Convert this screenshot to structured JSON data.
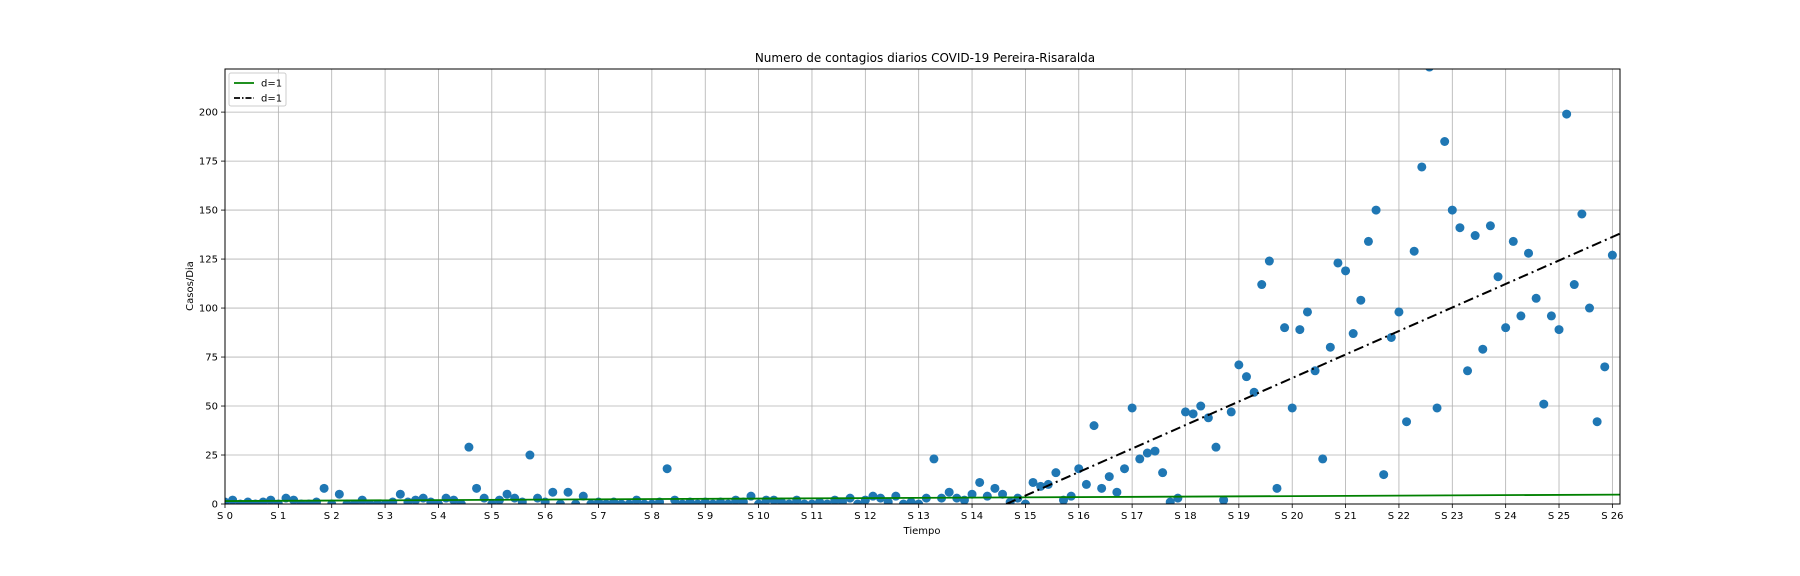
{
  "chart_data": {
    "type": "scatter",
    "title": "Numero de contagios diarios COVID-19 Pereira-Risaralda",
    "xlabel": "Tiempo",
    "ylabel": "Casos/Dia",
    "xlim": [
      0,
      183
    ],
    "ylim": [
      0,
      222
    ],
    "grid": true,
    "legend_position": "top-left",
    "x_ticks": [
      {
        "value": 0,
        "label": "S 0"
      },
      {
        "value": 7,
        "label": "S 1"
      },
      {
        "value": 14,
        "label": "S 2"
      },
      {
        "value": 21,
        "label": "S 3"
      },
      {
        "value": 28,
        "label": "S 4"
      },
      {
        "value": 35,
        "label": "S 5"
      },
      {
        "value": 42,
        "label": "S 6"
      },
      {
        "value": 49,
        "label": "S 7"
      },
      {
        "value": 56,
        "label": "S 8"
      },
      {
        "value": 63,
        "label": "S 9"
      },
      {
        "value": 70,
        "label": "S 10"
      },
      {
        "value": 77,
        "label": "S 11"
      },
      {
        "value": 84,
        "label": "S 12"
      },
      {
        "value": 91,
        "label": "S 13"
      },
      {
        "value": 98,
        "label": "S 14"
      },
      {
        "value": 105,
        "label": "S 15"
      },
      {
        "value": 112,
        "label": "S 16"
      },
      {
        "value": 119,
        "label": "S 17"
      },
      {
        "value": 126,
        "label": "S 18"
      },
      {
        "value": 133,
        "label": "S 19"
      },
      {
        "value": 140,
        "label": "S 20"
      },
      {
        "value": 147,
        "label": "S 21"
      },
      {
        "value": 154,
        "label": "S 22"
      },
      {
        "value": 161,
        "label": "S 23"
      },
      {
        "value": 168,
        "label": "S 24"
      },
      {
        "value": 175,
        "label": "S 25"
      },
      {
        "value": 182,
        "label": "S 26"
      }
    ],
    "y_ticks": [
      {
        "value": 0,
        "label": "0"
      },
      {
        "value": 25,
        "label": "25"
      },
      {
        "value": 50,
        "label": "50"
      },
      {
        "value": 75,
        "label": "75"
      },
      {
        "value": 100,
        "label": "100"
      },
      {
        "value": 125,
        "label": "125"
      },
      {
        "value": 150,
        "label": "150"
      },
      {
        "value": 175,
        "label": "175"
      },
      {
        "value": 200,
        "label": "200"
      }
    ],
    "series": [
      {
        "kind": "scatter",
        "color": "#1f77b4",
        "points": [
          [
            0,
            1
          ],
          [
            1,
            2
          ],
          [
            2,
            0
          ],
          [
            3,
            1
          ],
          [
            4,
            0
          ],
          [
            5,
            1
          ],
          [
            6,
            2
          ],
          [
            7,
            0
          ],
          [
            8,
            3
          ],
          [
            9,
            2
          ],
          [
            10,
            0
          ],
          [
            11,
            0
          ],
          [
            12,
            1
          ],
          [
            13,
            8
          ],
          [
            14,
            0
          ],
          [
            15,
            5
          ],
          [
            16,
            0
          ],
          [
            17,
            0
          ],
          [
            18,
            2
          ],
          [
            19,
            0
          ],
          [
            20,
            0
          ],
          [
            21,
            0
          ],
          [
            22,
            1
          ],
          [
            23,
            5
          ],
          [
            24,
            1
          ],
          [
            25,
            2
          ],
          [
            26,
            3
          ],
          [
            27,
            1
          ],
          [
            28,
            0
          ],
          [
            29,
            3
          ],
          [
            30,
            2
          ],
          [
            31,
            0
          ],
          [
            32,
            29
          ],
          [
            33,
            8
          ],
          [
            34,
            3
          ],
          [
            35,
            0
          ],
          [
            36,
            2
          ],
          [
            37,
            5
          ],
          [
            38,
            3
          ],
          [
            39,
            1
          ],
          [
            40,
            25
          ],
          [
            41,
            3
          ],
          [
            42,
            1
          ],
          [
            43,
            6
          ],
          [
            44,
            0
          ],
          [
            45,
            6
          ],
          [
            46,
            0
          ],
          [
            47,
            4
          ],
          [
            48,
            0
          ],
          [
            49,
            1
          ],
          [
            50,
            0
          ],
          [
            51,
            1
          ],
          [
            52,
            0
          ],
          [
            53,
            0
          ],
          [
            54,
            2
          ],
          [
            55,
            0
          ],
          [
            56,
            0
          ],
          [
            57,
            1
          ],
          [
            58,
            18
          ],
          [
            59,
            2
          ],
          [
            60,
            0
          ],
          [
            61,
            1
          ],
          [
            62,
            0
          ],
          [
            63,
            1
          ],
          [
            64,
            0
          ],
          [
            65,
            1
          ],
          [
            66,
            0
          ],
          [
            67,
            2
          ],
          [
            68,
            1
          ],
          [
            69,
            4
          ],
          [
            70,
            0
          ],
          [
            71,
            2
          ],
          [
            72,
            2
          ],
          [
            73,
            1
          ],
          [
            74,
            0
          ],
          [
            75,
            2
          ],
          [
            76,
            0
          ],
          [
            77,
            0
          ],
          [
            78,
            1
          ],
          [
            79,
            0
          ],
          [
            80,
            2
          ],
          [
            81,
            1
          ],
          [
            82,
            3
          ],
          [
            83,
            0
          ],
          [
            84,
            2
          ],
          [
            85,
            4
          ],
          [
            86,
            3
          ],
          [
            87,
            1
          ],
          [
            88,
            4
          ],
          [
            89,
            0
          ],
          [
            90,
            1
          ],
          [
            91,
            0
          ],
          [
            92,
            3
          ],
          [
            93,
            23
          ],
          [
            94,
            3
          ],
          [
            95,
            6
          ],
          [
            96,
            3
          ],
          [
            97,
            2
          ],
          [
            98,
            5
          ],
          [
            99,
            11
          ],
          [
            100,
            4
          ],
          [
            101,
            8
          ],
          [
            102,
            5
          ],
          [
            103,
            1
          ],
          [
            104,
            3
          ],
          [
            105,
            0
          ],
          [
            106,
            11
          ],
          [
            107,
            9
          ],
          [
            108,
            10
          ],
          [
            109,
            16
          ],
          [
            110,
            2
          ],
          [
            111,
            4
          ],
          [
            112,
            18
          ],
          [
            113,
            10
          ],
          [
            114,
            40
          ],
          [
            115,
            8
          ],
          [
            116,
            14
          ],
          [
            117,
            6
          ],
          [
            118,
            18
          ],
          [
            119,
            49
          ],
          [
            120,
            23
          ],
          [
            121,
            26
          ],
          [
            122,
            27
          ],
          [
            123,
            16
          ],
          [
            124,
            1
          ],
          [
            125,
            3
          ],
          [
            126,
            47
          ],
          [
            127,
            46
          ],
          [
            128,
            50
          ],
          [
            129,
            44
          ],
          [
            130,
            29
          ],
          [
            131,
            2
          ],
          [
            132,
            47
          ],
          [
            133,
            71
          ],
          [
            134,
            65
          ],
          [
            135,
            57
          ],
          [
            136,
            112
          ],
          [
            137,
            124
          ],
          [
            138,
            8
          ],
          [
            139,
            90
          ],
          [
            140,
            49
          ],
          [
            141,
            89
          ],
          [
            142,
            98
          ],
          [
            143,
            68
          ],
          [
            144,
            23
          ],
          [
            145,
            80
          ],
          [
            146,
            123
          ],
          [
            147,
            119
          ],
          [
            148,
            87
          ],
          [
            149,
            104
          ],
          [
            150,
            134
          ],
          [
            151,
            150
          ],
          [
            152,
            15
          ],
          [
            153,
            85
          ],
          [
            154,
            98
          ],
          [
            155,
            42
          ],
          [
            156,
            129
          ],
          [
            157,
            172
          ],
          [
            158,
            223
          ],
          [
            159,
            49
          ],
          [
            160,
            185
          ],
          [
            161,
            150
          ],
          [
            162,
            141
          ],
          [
            163,
            68
          ],
          [
            164,
            137
          ],
          [
            165,
            79
          ],
          [
            166,
            142
          ],
          [
            167,
            116
          ],
          [
            168,
            90
          ],
          [
            169,
            134
          ],
          [
            170,
            96
          ],
          [
            171,
            128
          ],
          [
            172,
            105
          ],
          [
            173,
            51
          ],
          [
            174,
            96
          ],
          [
            175,
            89
          ],
          [
            176,
            199
          ],
          [
            177,
            112
          ],
          [
            178,
            148
          ],
          [
            179,
            100
          ],
          [
            180,
            42
          ],
          [
            181,
            70
          ],
          [
            182,
            127
          ]
        ]
      },
      {
        "kind": "line",
        "name": "d=1",
        "color": "#008000",
        "style": "solid",
        "x": [
          0,
          183
        ],
        "y": [
          1.5,
          4.8
        ]
      },
      {
        "kind": "line",
        "name": "d=1",
        "color": "#000000",
        "style": "dash-dot",
        "x": [
          102.5,
          183
        ],
        "y": [
          0,
          138
        ]
      }
    ]
  }
}
